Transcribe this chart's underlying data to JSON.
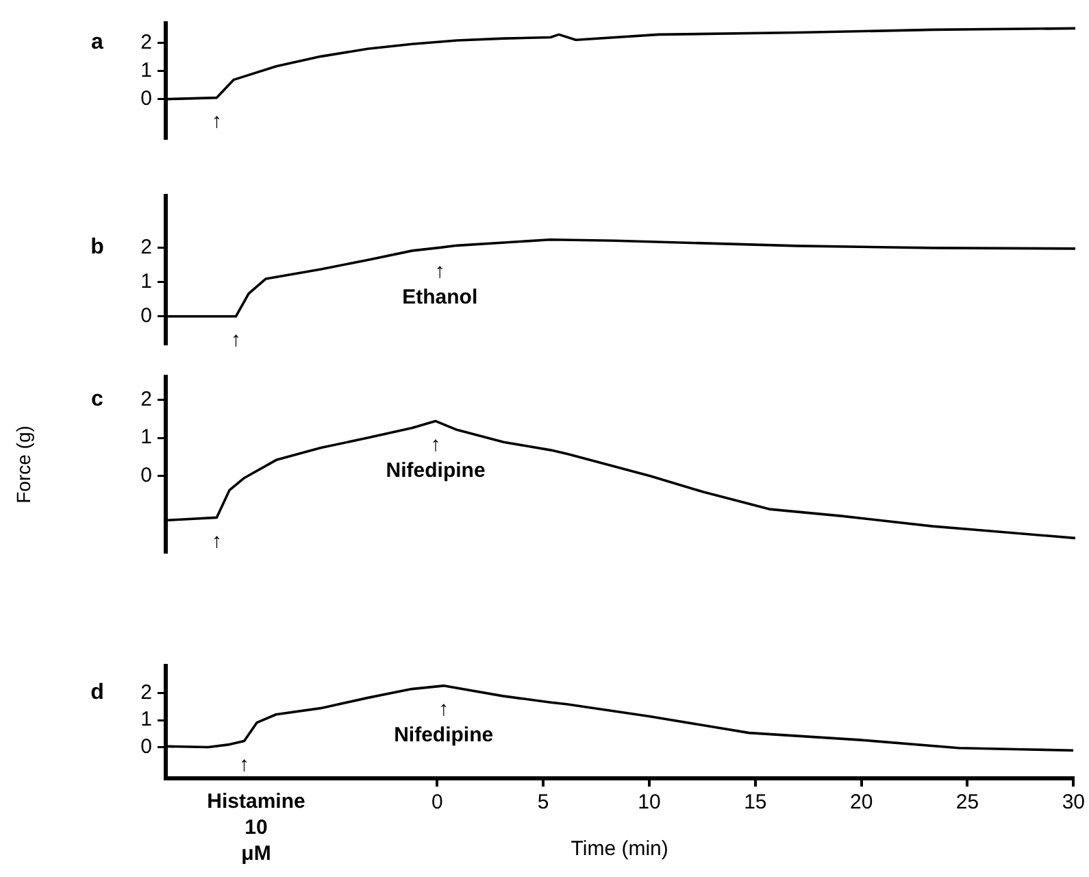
{
  "chart_data": [
    {
      "type": "line",
      "title": "a",
      "x": [
        -12.7,
        -10.4,
        -9.6,
        -7.6,
        -5.5,
        -3.3,
        -1.2,
        0.9,
        3.1,
        5.3,
        5.7,
        6.5,
        10.4,
        16.9,
        23.3,
        30
      ],
      "series": [
        {
          "color": "#000000",
          "values": [
            0,
            0.05,
            0.69,
            1.17,
            1.52,
            1.79,
            1.96,
            2.09,
            2.16,
            2.2,
            2.3,
            2.11,
            2.3,
            2.37,
            2.47,
            2.52
          ]
        }
      ],
      "xlim": [
        -12.8,
        30
      ],
      "ylim": [
        -1.4,
        2.7
      ],
      "yticks": [
        0,
        1,
        2
      ],
      "tick_labels": "y",
      "marker": "none",
      "annotations": [
        {
          "text": "↑",
          "x": -10.4,
          "y": 0.05
        }
      ]
    },
    {
      "type": "line",
      "title": "b",
      "x": [
        -12.7,
        -9.5,
        -8.9,
        -8.1,
        -5.5,
        -3.3,
        -1.2,
        0.1,
        0.9,
        5.3,
        8.3,
        16.9,
        23.3,
        30
      ],
      "series": [
        {
          "color": "#000000",
          "values": [
            0,
            0,
            0.66,
            1.09,
            1.37,
            1.64,
            1.91,
            2.0,
            2.06,
            2.23,
            2.2,
            2.05,
            1.99,
            1.97
          ]
        }
      ],
      "xlim": [
        -12.8,
        30
      ],
      "ylim": [
        -0.8,
        3.5
      ],
      "yticks": [
        0,
        1,
        2
      ],
      "tick_labels": "y",
      "marker": "none",
      "annotations": [
        {
          "text": "↑",
          "x": -9.5,
          "y": 0
        },
        {
          "text": "↑ Ethanol",
          "x": 0.1,
          "y": 2.0
        }
      ]
    },
    {
      "type": "line",
      "title": "c",
      "ylabel": "Force (g)",
      "x": [
        -12.7,
        -10.4,
        -9.8,
        -9.1,
        -7.6,
        -5.5,
        -3.3,
        -1.2,
        -0.1,
        0.9,
        3.1,
        5.3,
        6.1,
        10.0,
        12.5,
        15.6,
        19.0,
        23.3,
        25.5,
        30
      ],
      "series": [
        {
          "color": "#000000",
          "values": [
            -1.16,
            -1.09,
            -0.37,
            -0.05,
            0.42,
            0.74,
            1.0,
            1.26,
            1.44,
            1.21,
            0.89,
            0.68,
            0.58,
            0,
            -0.42,
            -0.87,
            -1.05,
            -1.32,
            -1.42,
            -1.63
          ]
        }
      ],
      "xlim": [
        -12.8,
        30
      ],
      "ylim": [
        -2.0,
        2.6
      ],
      "yticks": [
        0,
        1,
        2
      ],
      "tick_labels": "y",
      "marker": "none",
      "annotations": [
        {
          "text": "↑",
          "x": -10.4,
          "y": -1.09
        },
        {
          "text": "↑ Nifedipine",
          "x": -0.1,
          "y": 1.44
        }
      ]
    },
    {
      "type": "line",
      "title": "d",
      "xlabel": "Time (min)",
      "x": [
        -12.7,
        -10.8,
        -9.8,
        -9.1,
        -8.5,
        -7.6,
        -5.5,
        -3.3,
        -1.2,
        0.3,
        3.1,
        5.3,
        6.1,
        10.0,
        14.7,
        19.9,
        24.6,
        27.6,
        30
      ],
      "series": [
        {
          "color": "#000000",
          "values": [
            0.03,
            0,
            0.1,
            0.23,
            0.91,
            1.21,
            1.44,
            1.82,
            2.15,
            2.27,
            1.89,
            1.66,
            1.59,
            1.14,
            0.53,
            0.27,
            -0.03,
            -0.08,
            -0.12
          ]
        }
      ],
      "xlim": [
        -12.8,
        30
      ],
      "xticks": [
        0,
        5,
        10,
        15,
        20,
        25,
        30
      ],
      "ylim": [
        -1.15,
        3.0
      ],
      "yticks": [
        0,
        1,
        2
      ],
      "marker": "none",
      "annotations": [
        {
          "text": "↑",
          "x": -9.1,
          "y": 0.23
        },
        {
          "text": "↑ Nifedipine",
          "x": 0.3,
          "y": 2.27
        },
        "Histamine 10 μM"
      ]
    }
  ]
}
